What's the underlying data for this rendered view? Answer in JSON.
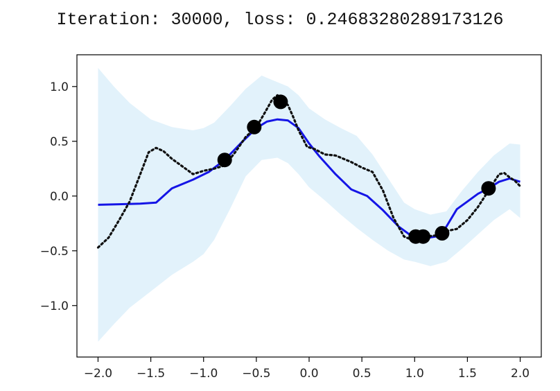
{
  "title": "Iteration: 30000, loss: 0.24683280289173126",
  "chart_data": {
    "type": "line",
    "xlim": [
      -2.2,
      2.2
    ],
    "ylim": [
      -1.47,
      1.29
    ],
    "xticks": [
      -2.0,
      -1.5,
      -1.0,
      -0.5,
      0.0,
      0.5,
      1.0,
      1.5,
      2.0
    ],
    "xtick_labels": [
      "−2.0",
      "−1.5",
      "−1.0",
      "−0.5",
      "0.0",
      "0.5",
      "1.0",
      "1.5",
      "2.0"
    ],
    "yticks": [
      1.0,
      0.5,
      0.0,
      -0.5,
      -1.0
    ],
    "ytick_labels": [
      "1.0",
      "0.5",
      "0.0",
      "−0.5",
      "−1.0"
    ],
    "grid": false,
    "colors": {
      "mean": "#1515e6",
      "band": "#e2f2fb",
      "target": "#111111",
      "context": "#000000"
    },
    "band": {
      "x": [
        -2.0,
        -1.85,
        -1.7,
        -1.5,
        -1.3,
        -1.1,
        -1.0,
        -0.9,
        -0.75,
        -0.6,
        -0.45,
        -0.3,
        -0.2,
        -0.1,
        0.0,
        0.15,
        0.3,
        0.45,
        0.6,
        0.75,
        0.9,
        1.0,
        1.15,
        1.3,
        1.45,
        1.6,
        1.75,
        1.9,
        2.0
      ],
      "upper": [
        1.17,
        1.0,
        0.85,
        0.7,
        0.63,
        0.6,
        0.62,
        0.67,
        0.82,
        0.98,
        1.1,
        1.04,
        1.0,
        0.92,
        0.8,
        0.7,
        0.62,
        0.55,
        0.38,
        0.16,
        -0.06,
        -0.12,
        -0.17,
        -0.14,
        0.05,
        0.22,
        0.37,
        0.48,
        0.47
      ],
      "lower": [
        -1.33,
        -1.17,
        -1.02,
        -0.87,
        -0.72,
        -0.6,
        -0.53,
        -0.4,
        -0.12,
        0.18,
        0.33,
        0.35,
        0.3,
        0.2,
        0.08,
        -0.04,
        -0.17,
        -0.29,
        -0.4,
        -0.5,
        -0.58,
        -0.6,
        -0.64,
        -0.6,
        -0.48,
        -0.35,
        -0.22,
        -0.12,
        -0.2
      ]
    },
    "series": [
      {
        "style": "solid",
        "x": [
          -2.0,
          -1.8,
          -1.6,
          -1.45,
          -1.3,
          -1.1,
          -0.95,
          -0.8,
          -0.65,
          -0.5,
          -0.4,
          -0.3,
          -0.2,
          -0.1,
          0.0,
          0.1,
          0.25,
          0.4,
          0.55,
          0.7,
          0.85,
          0.95,
          1.0,
          1.1,
          1.2,
          1.25,
          1.3,
          1.4,
          1.5,
          1.6,
          1.7,
          1.8,
          1.9,
          2.0
        ],
        "y": [
          -0.08,
          -0.075,
          -0.07,
          -0.06,
          0.07,
          0.15,
          0.22,
          0.33,
          0.48,
          0.62,
          0.68,
          0.7,
          0.69,
          0.62,
          0.48,
          0.36,
          0.2,
          0.06,
          0.0,
          -0.13,
          -0.28,
          -0.35,
          -0.37,
          -0.385,
          -0.37,
          -0.35,
          -0.28,
          -0.12,
          -0.05,
          0.02,
          0.07,
          0.13,
          0.16,
          0.13
        ]
      },
      {
        "style": "dotted",
        "x": [
          -2.0,
          -1.9,
          -1.8,
          -1.7,
          -1.6,
          -1.52,
          -1.45,
          -1.38,
          -1.3,
          -1.2,
          -1.1,
          -1.0,
          -0.9,
          -0.8,
          -0.7,
          -0.6,
          -0.5,
          -0.42,
          -0.35,
          -0.3,
          -0.25,
          -0.2,
          -0.15,
          -0.1,
          -0.02,
          0.05,
          0.15,
          0.25,
          0.4,
          0.5,
          0.6,
          0.7,
          0.8,
          0.9,
          0.95,
          1.0,
          1.1,
          1.2,
          1.3,
          1.4,
          1.5,
          1.6,
          1.7,
          1.8,
          1.85,
          1.9,
          1.95,
          2.0
        ],
        "y": [
          -0.47,
          -0.38,
          -0.22,
          -0.05,
          0.2,
          0.4,
          0.44,
          0.41,
          0.34,
          0.27,
          0.2,
          0.23,
          0.25,
          0.28,
          0.4,
          0.54,
          0.63,
          0.76,
          0.88,
          0.92,
          0.88,
          0.83,
          0.72,
          0.6,
          0.45,
          0.43,
          0.38,
          0.37,
          0.31,
          0.26,
          0.22,
          0.05,
          -0.2,
          -0.37,
          -0.39,
          -0.38,
          -0.37,
          -0.36,
          -0.32,
          -0.3,
          -0.22,
          -0.1,
          0.05,
          0.2,
          0.21,
          0.17,
          0.14,
          0.09
        ]
      }
    ],
    "points": {
      "x": [
        -0.8,
        -0.52,
        -0.27,
        1.01,
        1.08,
        1.26,
        1.7
      ],
      "y": [
        0.33,
        0.63,
        0.86,
        -0.37,
        -0.37,
        -0.34,
        0.07
      ]
    }
  }
}
